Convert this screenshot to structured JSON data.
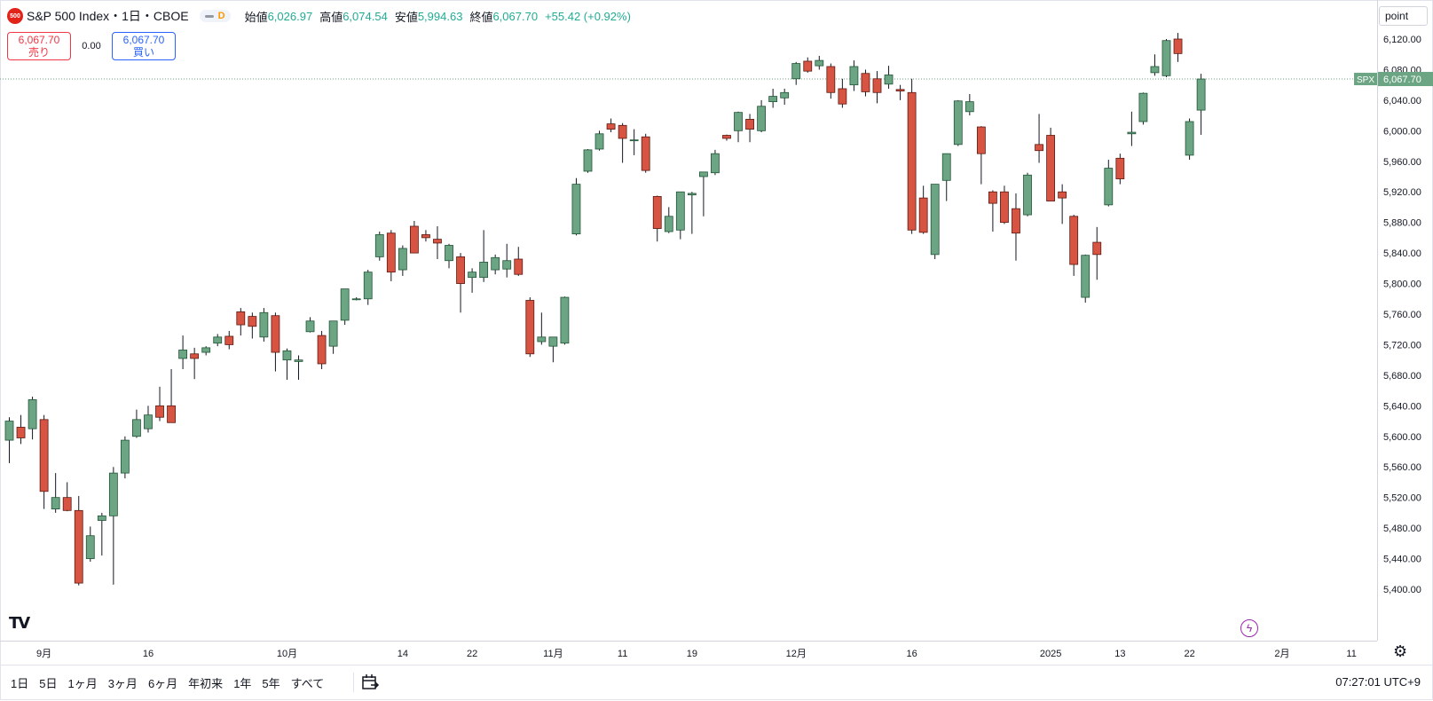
{
  "header": {
    "symbol_badge": "500",
    "title": "S&P 500 Index・1日・CBOE",
    "open_label": "始値",
    "open": "6,026.97",
    "high_label": "高値",
    "high": "6,074.54",
    "low_label": "安値",
    "low": "5,994.63",
    "close_label": "終値",
    "close": "6,067.70",
    "change": "+55.42 (+0.92%)",
    "market_status": "D"
  },
  "trade": {
    "sell_price": "6,067.70",
    "sell_label": "売り",
    "spread": "0.00",
    "buy_price": "6,067.70",
    "buy_label": "買い"
  },
  "axis_unit": "point",
  "bottom": {
    "ranges": [
      "1日",
      "5日",
      "1ヶ月",
      "3ヶ月",
      "6ヶ月",
      "年初来",
      "1年",
      "5年",
      "すべて"
    ],
    "clock": "07:27:01 UTC+9"
  },
  "icons": {
    "logo": "tradingview-logo",
    "bolt": "lightning-icon",
    "settings": "gear-icon",
    "goto": "calendar-goto-icon"
  },
  "colors": {
    "up": "#6ba583",
    "down": "#d75442",
    "up_edge": "#225437",
    "down_edge": "#5b1a13",
    "accent": "#22ab94"
  },
  "chart_data": {
    "type": "candlestick",
    "symbol": "SPX",
    "last_price": 6067.7,
    "last_price_label": "6,067.70",
    "ylim": [
      5360,
      6160
    ],
    "yticks": [
      5400,
      5440,
      5480,
      5520,
      5560,
      5600,
      5640,
      5680,
      5720,
      5760,
      5800,
      5840,
      5880,
      5920,
      5960,
      6000,
      6040,
      6080,
      6120
    ],
    "ytick_labels": [
      "5,400.00",
      "5,440.00",
      "5,480.00",
      "5,520.00",
      "5,560.00",
      "5,600.00",
      "5,640.00",
      "5,680.00",
      "5,720.00",
      "5,760.00",
      "5,800.00",
      "5,840.00",
      "5,880.00",
      "5,920.00",
      "5,960.00",
      "6,000.00",
      "6,040.00",
      "6,080.00",
      "6,120.00"
    ],
    "xticks": [
      {
        "bar": 3,
        "label": "9月"
      },
      {
        "bar": 12,
        "label": "16"
      },
      {
        "bar": 24,
        "label": "10月"
      },
      {
        "bar": 34,
        "label": "14"
      },
      {
        "bar": 40,
        "label": "22"
      },
      {
        "bar": 47,
        "label": "11月"
      },
      {
        "bar": 53,
        "label": "11"
      },
      {
        "bar": 59,
        "label": "19"
      },
      {
        "bar": 68,
        "label": "12月"
      },
      {
        "bar": 78,
        "label": "16"
      },
      {
        "bar": 90,
        "label": "2025"
      },
      {
        "bar": 96,
        "label": "13"
      },
      {
        "bar": 102,
        "label": "22"
      },
      {
        "bar": 110,
        "label": "2月"
      },
      {
        "bar": 116,
        "label": "11"
      }
    ],
    "candles": [
      {
        "o": 5595,
        "h": 5625,
        "l": 5565,
        "c": 5620
      },
      {
        "o": 5612,
        "h": 5628,
        "l": 5590,
        "c": 5598
      },
      {
        "o": 5610,
        "h": 5652,
        "l": 5596,
        "c": 5648
      },
      {
        "o": 5622,
        "h": 5628,
        "l": 5505,
        "c": 5528
      },
      {
        "o": 5505,
        "h": 5552,
        "l": 5500,
        "c": 5520
      },
      {
        "o": 5520,
        "h": 5540,
        "l": 5502,
        "c": 5503
      },
      {
        "o": 5503,
        "h": 5522,
        "l": 5405,
        "c": 5408
      },
      {
        "o": 5440,
        "h": 5482,
        "l": 5436,
        "c": 5470
      },
      {
        "o": 5490,
        "h": 5500,
        "l": 5444,
        "c": 5496
      },
      {
        "o": 5496,
        "h": 5560,
        "l": 5406,
        "c": 5552
      },
      {
        "o": 5552,
        "h": 5600,
        "l": 5545,
        "c": 5595
      },
      {
        "o": 5600,
        "h": 5635,
        "l": 5598,
        "c": 5622
      },
      {
        "o": 5610,
        "h": 5640,
        "l": 5605,
        "c": 5628
      },
      {
        "o": 5640,
        "h": 5665,
        "l": 5620,
        "c": 5625
      },
      {
        "o": 5640,
        "h": 5688,
        "l": 5618,
        "c": 5618
      },
      {
        "o": 5702,
        "h": 5732,
        "l": 5688,
        "c": 5713
      },
      {
        "o": 5708,
        "h": 5716,
        "l": 5675,
        "c": 5702
      },
      {
        "o": 5710,
        "h": 5718,
        "l": 5706,
        "c": 5716
      },
      {
        "o": 5722,
        "h": 5734,
        "l": 5718,
        "c": 5730
      },
      {
        "o": 5731,
        "h": 5738,
        "l": 5714,
        "c": 5720
      },
      {
        "o": 5763,
        "h": 5768,
        "l": 5732,
        "c": 5746
      },
      {
        "o": 5757,
        "h": 5762,
        "l": 5728,
        "c": 5744
      },
      {
        "o": 5730,
        "h": 5768,
        "l": 5724,
        "c": 5762
      },
      {
        "o": 5758,
        "h": 5762,
        "l": 5685,
        "c": 5710
      },
      {
        "o": 5700,
        "h": 5715,
        "l": 5674,
        "c": 5712
      },
      {
        "o": 5698,
        "h": 5706,
        "l": 5674,
        "c": 5700
      },
      {
        "o": 5737,
        "h": 5756,
        "l": 5736,
        "c": 5751
      },
      {
        "o": 5732,
        "h": 5738,
        "l": 5688,
        "c": 5695
      },
      {
        "o": 5718,
        "h": 5748,
        "l": 5708,
        "c": 5751
      },
      {
        "o": 5752,
        "h": 5792,
        "l": 5746,
        "c": 5793
      },
      {
        "o": 5780,
        "h": 5782,
        "l": 5778,
        "c": 5780
      },
      {
        "o": 5780,
        "h": 5818,
        "l": 5772,
        "c": 5815
      },
      {
        "o": 5835,
        "h": 5868,
        "l": 5830,
        "c": 5864
      },
      {
        "o": 5866,
        "h": 5870,
        "l": 5803,
        "c": 5815
      },
      {
        "o": 5818,
        "h": 5850,
        "l": 5810,
        "c": 5846
      },
      {
        "o": 5875,
        "h": 5882,
        "l": 5840,
        "c": 5840
      },
      {
        "o": 5864,
        "h": 5870,
        "l": 5855,
        "c": 5860
      },
      {
        "o": 5858,
        "h": 5875,
        "l": 5832,
        "c": 5853
      },
      {
        "o": 5830,
        "h": 5852,
        "l": 5820,
        "c": 5850
      },
      {
        "o": 5835,
        "h": 5840,
        "l": 5762,
        "c": 5800
      },
      {
        "o": 5808,
        "h": 5820,
        "l": 5788,
        "c": 5815
      },
      {
        "o": 5808,
        "h": 5870,
        "l": 5802,
        "c": 5828
      },
      {
        "o": 5818,
        "h": 5838,
        "l": 5812,
        "c": 5834
      },
      {
        "o": 5819,
        "h": 5852,
        "l": 5808,
        "c": 5830
      },
      {
        "o": 5832,
        "h": 5848,
        "l": 5810,
        "c": 5812
      },
      {
        "o": 5778,
        "h": 5782,
        "l": 5704,
        "c": 5708
      },
      {
        "o": 5724,
        "h": 5762,
        "l": 5720,
        "c": 5730
      },
      {
        "o": 5718,
        "h": 5730,
        "l": 5697,
        "c": 5730
      },
      {
        "o": 5722,
        "h": 5783,
        "l": 5720,
        "c": 5782
      },
      {
        "o": 5865,
        "h": 5938,
        "l": 5863,
        "c": 5930
      },
      {
        "o": 5947,
        "h": 5976,
        "l": 5945,
        "c": 5975
      },
      {
        "o": 5976,
        "h": 6000,
        "l": 5974,
        "c": 5996
      },
      {
        "o": 6009,
        "h": 6016,
        "l": 5998,
        "c": 6002
      },
      {
        "o": 6007,
        "h": 6010,
        "l": 5958,
        "c": 5990
      },
      {
        "o": 5987,
        "h": 6002,
        "l": 5968,
        "c": 5988
      },
      {
        "o": 5992,
        "h": 5996,
        "l": 5945,
        "c": 5948
      },
      {
        "o": 5914,
        "h": 5915,
        "l": 5855,
        "c": 5872
      },
      {
        "o": 5868,
        "h": 5900,
        "l": 5866,
        "c": 5888
      },
      {
        "o": 5870,
        "h": 5920,
        "l": 5858,
        "c": 5920
      },
      {
        "o": 5916,
        "h": 5920,
        "l": 5865,
        "c": 5918
      },
      {
        "o": 5940,
        "h": 5946,
        "l": 5888,
        "c": 5946
      },
      {
        "o": 5945,
        "h": 5975,
        "l": 5942,
        "c": 5970
      },
      {
        "o": 5994,
        "h": 5995,
        "l": 5987,
        "c": 5990
      },
      {
        "o": 6000,
        "h": 6025,
        "l": 5985,
        "c": 6024
      },
      {
        "o": 6015,
        "h": 6022,
        "l": 5985,
        "c": 6002
      },
      {
        "o": 6000,
        "h": 6040,
        "l": 5998,
        "c": 6032
      },
      {
        "o": 6038,
        "h": 6055,
        "l": 6030,
        "c": 6045
      },
      {
        "o": 6043,
        "h": 6055,
        "l": 6034,
        "c": 6050
      },
      {
        "o": 6068,
        "h": 6090,
        "l": 6060,
        "c": 6088
      },
      {
        "o": 6091,
        "h": 6096,
        "l": 6076,
        "c": 6078
      },
      {
        "o": 6085,
        "h": 6098,
        "l": 6080,
        "c": 6092
      },
      {
        "o": 6084,
        "h": 6088,
        "l": 6042,
        "c": 6050
      },
      {
        "o": 6055,
        "h": 6068,
        "l": 6030,
        "c": 6035
      },
      {
        "o": 6060,
        "h": 6092,
        "l": 6052,
        "c": 6084
      },
      {
        "o": 6075,
        "h": 6080,
        "l": 6045,
        "c": 6051
      },
      {
        "o": 6068,
        "h": 6078,
        "l": 6036,
        "c": 6050
      },
      {
        "o": 6061,
        "h": 6085,
        "l": 6055,
        "c": 6073
      },
      {
        "o": 6054,
        "h": 6060,
        "l": 6040,
        "c": 6052
      },
      {
        "o": 6050,
        "h": 6068,
        "l": 5865,
        "c": 5870
      },
      {
        "o": 5912,
        "h": 5928,
        "l": 5865,
        "c": 5867
      },
      {
        "o": 5838,
        "h": 5928,
        "l": 5832,
        "c": 5930
      },
      {
        "o": 5935,
        "h": 5970,
        "l": 5908,
        "c": 5970
      },
      {
        "o": 5982,
        "h": 6040,
        "l": 5980,
        "c": 6039
      },
      {
        "o": 6025,
        "h": 6048,
        "l": 6020,
        "c": 6038
      },
      {
        "o": 6005,
        "h": 6006,
        "l": 5930,
        "c": 5970
      },
      {
        "o": 5920,
        "h": 5922,
        "l": 5868,
        "c": 5905
      },
      {
        "o": 5920,
        "h": 5928,
        "l": 5878,
        "c": 5880
      },
      {
        "o": 5898,
        "h": 5918,
        "l": 5830,
        "c": 5866
      },
      {
        "o": 5890,
        "h": 5945,
        "l": 5888,
        "c": 5942
      },
      {
        "o": 5982,
        "h": 6022,
        "l": 5958,
        "c": 5974
      },
      {
        "o": 5994,
        "h": 6004,
        "l": 5908,
        "c": 5908
      },
      {
        "o": 5920,
        "h": 5930,
        "l": 5878,
        "c": 5912
      },
      {
        "o": 5888,
        "h": 5890,
        "l": 5810,
        "c": 5825
      },
      {
        "o": 5782,
        "h": 5838,
        "l": 5775,
        "c": 5837
      },
      {
        "o": 5854,
        "h": 5874,
        "l": 5805,
        "c": 5838
      },
      {
        "o": 5903,
        "h": 5962,
        "l": 5901,
        "c": 5951
      },
      {
        "o": 5964,
        "h": 5970,
        "l": 5930,
        "c": 5937
      },
      {
        "o": 5996,
        "h": 6025,
        "l": 5980,
        "c": 5998
      },
      {
        "o": 6012,
        "h": 6050,
        "l": 6008,
        "c": 6049
      },
      {
        "o": 6076,
        "h": 6100,
        "l": 6072,
        "c": 6084
      },
      {
        "o": 6072,
        "h": 6120,
        "l": 6070,
        "c": 6118
      },
      {
        "o": 6120,
        "h": 6128,
        "l": 6090,
        "c": 6101
      },
      {
        "o": 5968,
        "h": 6016,
        "l": 5962,
        "c": 6012
      },
      {
        "o": 6026.97,
        "h": 6074.54,
        "l": 5994.63,
        "c": 6067.7
      }
    ]
  }
}
